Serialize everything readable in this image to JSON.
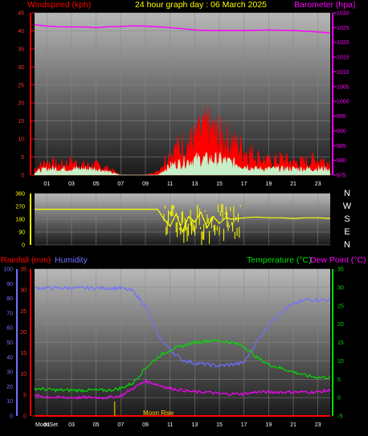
{
  "header": {
    "windspeed_label": "Windspeed (kph)",
    "title": "24 hour graph day : 06 March 2025",
    "barometer_label": "Barometer (hpa)",
    "rainfall_label": "Rainfall (mm)",
    "humidity_label": "Humidity",
    "temperature_label": "Temperature (°C)",
    "dewpoint_label": "Dew Point (°C)",
    "moon_rise": "Moon Rise",
    "moon_set": "MoonSet"
  },
  "colors": {
    "wind": "#ff0000",
    "gust_light": "#c8f0c8",
    "barometer": "#ff00ff",
    "direction": "#ffff00",
    "humidity": "#7070ff",
    "temperature": "#00dd00",
    "dewpoint": "#ff00ff",
    "rain": "#ff0000",
    "moon": "#c8a000"
  },
  "chart_data": [
    {
      "type": "line",
      "name": "wind-barometer",
      "x_ticks": [
        "01",
        "03",
        "05",
        "07",
        "09",
        "11",
        "13",
        "15",
        "17",
        "19",
        "21",
        "23"
      ],
      "y_left_ticks": [
        "45",
        "40",
        "35",
        "30",
        "25",
        "20",
        "15",
        "10",
        "5",
        "0"
      ],
      "y_right_ticks": [
        "1030",
        "1025",
        "1020",
        "1015",
        "1010",
        "1005",
        "1000",
        "995",
        "990",
        "985",
        "980",
        "975"
      ],
      "ylim_left": [
        0,
        45
      ],
      "ylim_right": [
        975,
        1030
      ],
      "series": [
        {
          "name": "Barometer (hpa)",
          "axis": "right",
          "x": [
            0,
            1,
            2,
            3,
            4,
            5,
            6,
            7,
            8,
            9,
            10,
            11,
            12,
            13,
            14,
            15,
            16,
            17,
            18,
            19,
            20,
            21,
            22,
            23,
            24
          ],
          "values": [
            1026,
            1025.5,
            1025.3,
            1025.2,
            1025.2,
            1025,
            1025.3,
            1025.4,
            1025.6,
            1025.5,
            1025.3,
            1025,
            1024.6,
            1024.2,
            1024,
            1024,
            1024,
            1024,
            1024.1,
            1024.2,
            1024.1,
            1024,
            1023.8,
            1023.5,
            1023.2
          ]
        },
        {
          "name": "Windspeed (kph)",
          "axis": "left",
          "x": [
            0,
            1,
            2,
            3,
            4,
            5,
            6,
            7,
            8,
            9,
            10,
            11,
            12,
            13,
            14,
            15,
            16,
            17,
            18,
            19,
            20,
            21,
            22,
            23,
            24
          ],
          "values": [
            2,
            4,
            3,
            4,
            3,
            3,
            2,
            0,
            0,
            0,
            1,
            7,
            9,
            11,
            14,
            12,
            10,
            8,
            6,
            4,
            5,
            4,
            4,
            5,
            4
          ]
        },
        {
          "name": "Gust",
          "axis": "left",
          "x": [
            0,
            1,
            2,
            3,
            4,
            5,
            6,
            7,
            8,
            9,
            10,
            11,
            12,
            13,
            14,
            15,
            16,
            17,
            18,
            19,
            20,
            21,
            22,
            23,
            24
          ],
          "values": [
            1,
            2,
            2,
            2,
            2,
            2,
            1,
            0,
            0,
            0,
            0,
            3,
            4,
            5,
            5,
            5,
            4,
            3,
            2,
            2,
            2,
            2,
            2,
            2,
            2
          ]
        }
      ]
    },
    {
      "type": "line",
      "name": "wind-direction",
      "x_ticks": [
        "01",
        "03",
        "05",
        "07",
        "09",
        "11",
        "13",
        "15",
        "17",
        "19",
        "21",
        "23"
      ],
      "y_ticks": [
        "360",
        "270",
        "180",
        "90",
        "0"
      ],
      "compass": [
        "N",
        "W",
        "S",
        "E",
        "N"
      ],
      "ylim": [
        0,
        360
      ],
      "series": [
        {
          "name": "Direction",
          "x": [
            0,
            2,
            4,
            6,
            8,
            10,
            10.5,
            11,
            11.5,
            12,
            12.5,
            13,
            13.5,
            14,
            14.5,
            15,
            15.5,
            16,
            17,
            18,
            19,
            20,
            21,
            22,
            23,
            24
          ],
          "values": [
            250,
            250,
            250,
            250,
            250,
            250,
            180,
            130,
            220,
            90,
            200,
            160,
            230,
            120,
            200,
            150,
            190,
            180,
            190,
            195,
            190,
            190,
            185,
            190,
            190,
            185
          ]
        }
      ]
    },
    {
      "type": "line",
      "name": "rain-humidity-temperature",
      "x_ticks": [
        "MoonSet",
        "01",
        "03",
        "05",
        "07",
        "09",
        "11",
        "13",
        "15",
        "17",
        "19",
        "21",
        "23"
      ],
      "y_humidity_ticks": [
        "100",
        "90",
        "80",
        "70",
        "60",
        "50",
        "40",
        "30",
        "20",
        "10",
        "0"
      ],
      "y_rain_ticks": [
        "35",
        "30",
        "25",
        "20",
        "15",
        "10",
        "5",
        "0"
      ],
      "y_temp_ticks": [
        "35",
        "30",
        "25",
        "20",
        "15",
        "10",
        "5",
        "0",
        "-5"
      ],
      "ylim_humidity": [
        0,
        100
      ],
      "ylim_temp": [
        -5,
        35
      ],
      "series": [
        {
          "name": "Humidity",
          "axis": "humidity",
          "x": [
            0,
            1,
            2,
            3,
            4,
            5,
            6,
            7,
            8,
            9,
            10,
            11,
            12,
            13,
            14,
            15,
            16,
            17,
            18,
            19,
            20,
            21,
            22,
            23,
            24
          ],
          "values": [
            87,
            87,
            87,
            87,
            87,
            87,
            87,
            87,
            85,
            75,
            55,
            45,
            38,
            36,
            35,
            34,
            35,
            36,
            50,
            62,
            71,
            76,
            79,
            79,
            79
          ]
        },
        {
          "name": "Temperature (°C)",
          "axis": "temp",
          "x": [
            0,
            1,
            2,
            3,
            4,
            5,
            6,
            7,
            8,
            9,
            10,
            11,
            12,
            13,
            14,
            15,
            16,
            17,
            18,
            19,
            20,
            21,
            22,
            23,
            24
          ],
          "values": [
            2.5,
            2.2,
            2.0,
            2.0,
            2.0,
            2.0,
            2.0,
            2.5,
            4,
            8,
            11,
            13,
            14,
            15,
            15.5,
            15.5,
            15,
            14,
            11,
            9,
            8,
            7,
            6,
            5.5,
            5.5
          ]
        },
        {
          "name": "Dew Point (°C)",
          "axis": "temp",
          "x": [
            0,
            1,
            2,
            3,
            4,
            5,
            6,
            7,
            8,
            9,
            10,
            11,
            12,
            13,
            14,
            15,
            16,
            17,
            18,
            19,
            20,
            21,
            22,
            23,
            24
          ],
          "values": [
            0.5,
            0.2,
            0,
            0,
            0,
            0,
            0,
            0.5,
            2.5,
            4.5,
            3.5,
            2.5,
            2,
            1.5,
            1.5,
            1,
            1,
            1,
            1.5,
            1.5,
            1.5,
            1.5,
            1.5,
            1.5,
            2
          ]
        },
        {
          "name": "Rainfall (mm)",
          "axis": "rain",
          "x": [
            0,
            24
          ],
          "values": [
            0,
            0
          ]
        }
      ]
    }
  ]
}
